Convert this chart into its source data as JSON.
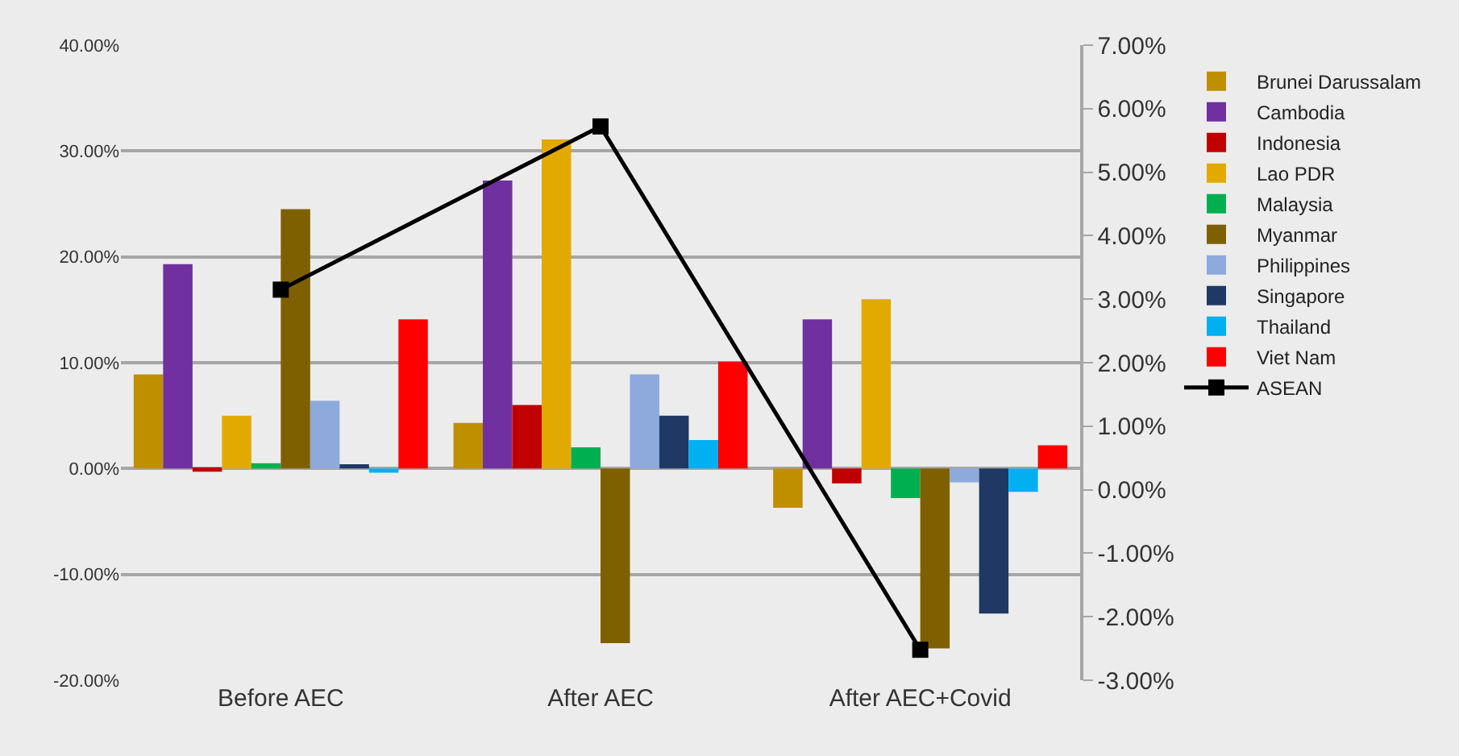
{
  "chart_data": {
    "type": "bar",
    "categories": [
      "Before AEC",
      "After AEC",
      "After AEC+Covid"
    ],
    "series": [
      {
        "name": "Brunei Darussalam",
        "color": "#bf8f00",
        "values": [
          8.9,
          4.3,
          -3.7
        ]
      },
      {
        "name": "Cambodia",
        "color": "#7030a0",
        "values": [
          19.3,
          27.2,
          14.1
        ]
      },
      {
        "name": "Indonesia",
        "color": "#c00000",
        "values": [
          -0.3,
          6.0,
          -1.4
        ]
      },
      {
        "name": "Lao PDR",
        "color": "#e2aa00",
        "values": [
          5.0,
          31.1,
          16.0
        ]
      },
      {
        "name": "Malaysia",
        "color": "#00b050",
        "values": [
          0.5,
          2.0,
          -2.8
        ]
      },
      {
        "name": "Myanmar",
        "color": "#7f6000",
        "values": [
          24.5,
          -16.5,
          -17.0
        ]
      },
      {
        "name": "Philippines",
        "color": "#8ea9db",
        "values": [
          6.4,
          8.9,
          -1.3
        ]
      },
      {
        "name": "Singapore",
        "color": "#203864",
        "values": [
          0.4,
          5.0,
          -13.7
        ]
      },
      {
        "name": "Thailand",
        "color": "#00b0f0",
        "values": [
          -0.4,
          2.7,
          -2.2
        ]
      },
      {
        "name": "Viet Nam",
        "color": "#ff0000",
        "values": [
          14.1,
          10.1,
          2.2
        ]
      },
      {
        "name": "ASEAN",
        "color": "#000000",
        "type": "line",
        "axis": "y2",
        "marker": "square",
        "values": [
          3.15,
          5.72,
          -2.52
        ]
      }
    ],
    "ylim": [
      -20,
      40
    ],
    "yticks": [
      {
        "value": -20,
        "label": "-20.00%"
      },
      {
        "value": -10,
        "label": "-10.00%"
      },
      {
        "value": 0,
        "label": "0.00%"
      },
      {
        "value": 10,
        "label": "10.00%"
      },
      {
        "value": 20,
        "label": "20.00%"
      },
      {
        "value": 30,
        "label": "30.00%"
      },
      {
        "value": 40,
        "label": "40.00%"
      }
    ],
    "y2lim": [
      -3,
      7
    ],
    "y2ticks": [
      {
        "value": -3,
        "label": "-3.00%"
      },
      {
        "value": -2,
        "label": "-2.00%"
      },
      {
        "value": -1,
        "label": "-1.00%"
      },
      {
        "value": 0,
        "label": "0.00%"
      },
      {
        "value": 1,
        "label": "1.00%"
      },
      {
        "value": 2,
        "label": "2.00%"
      },
      {
        "value": 3,
        "label": "3.00%"
      },
      {
        "value": 4,
        "label": "4.00%"
      },
      {
        "value": 5,
        "label": "5.00%"
      },
      {
        "value": 6,
        "label": "6.00%"
      },
      {
        "value": 7,
        "label": "7.00%"
      }
    ],
    "grid": "y",
    "legend": "right"
  }
}
